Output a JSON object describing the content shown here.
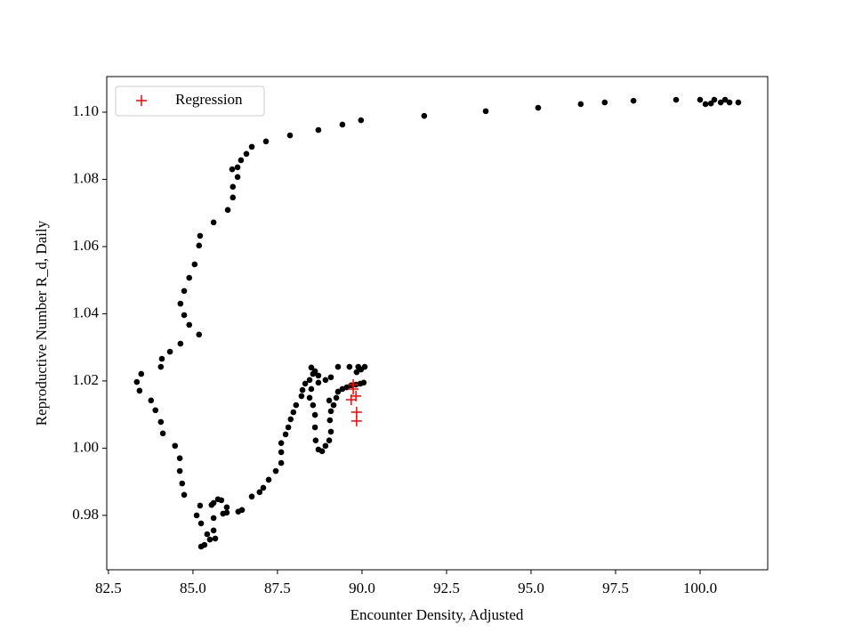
{
  "chart_data": {
    "type": "scatter",
    "xlabel": "Encounter Density, Adjusted",
    "ylabel": "Reproductive Number R_d, Daily",
    "xlim": [
      82.45,
      102.0
    ],
    "ylim": [
      0.9638,
      1.1106
    ],
    "xticks": [
      82.5,
      {
        "value": 85,
        "label": "85.0"
      },
      87.5,
      {
        "value": 90,
        "label": "90.0"
      },
      92.5,
      {
        "value": 95,
        "label": "95.0"
      },
      97.5,
      {
        "value": 100,
        "label": "100.0"
      }
    ],
    "yticks": [
      0.98,
      {
        "value": 1.0,
        "label": "1.00"
      },
      1.02,
      1.04,
      1.06,
      1.08,
      {
        "value": 1.1,
        "label": "1.10"
      }
    ],
    "legend": "upper left",
    "series": [
      {
        "color": "#000000",
        "marker": "dot",
        "x": [
          89.97,
          89.42,
          88.71,
          87.87,
          87.16,
          86.74,
          86.58,
          86.42,
          86.32,
          86.16,
          86.32,
          86.18,
          86.18,
          86.03,
          85.61,
          85.21,
          85.18,
          85.05,
          84.89,
          84.74,
          84.63,
          84.74,
          84.89,
          85.18,
          84.63,
          84.32,
          84.08,
          84.05,
          83.47,
          83.34,
          83.42,
          83.76,
          83.89,
          84.05,
          84.11,
          84.47,
          84.61,
          84.61,
          84.68,
          84.74,
          85.11,
          85.21,
          85.24,
          85.24,
          85.34,
          85.5,
          85.61,
          85.66,
          85.42,
          85.61,
          85.55,
          85.61,
          85.74,
          85.84,
          86.0,
          86.0,
          85.89,
          86.34,
          86.45,
          86.74,
          86.97,
          87.08,
          87.24,
          87.45,
          87.61,
          87.61,
          87.61,
          87.74,
          87.82,
          87.89,
          87.97,
          88.05,
          88.21,
          88.24,
          88.32,
          88.45,
          88.55,
          88.5,
          88.61,
          88.71,
          88.71,
          88.5,
          88.45,
          88.55,
          88.61,
          88.61,
          88.63,
          88.71,
          88.82,
          88.92,
          89.03,
          89.08,
          89.05,
          89.08,
          89.16,
          89.24,
          89.29,
          89.42,
          89.55,
          89.68,
          89.82,
          89.95,
          90.05,
          89.08,
          88.92,
          89.03,
          89.29,
          89.63,
          89.89,
          89.97,
          90.08,
          89.84,
          91.84,
          93.66,
          95.21,
          96.47,
          97.18,
          98.03,
          99.29,
          100.0,
          100.16,
          100.32,
          100.42,
          100.61,
          100.74,
          100.87,
          101.13
        ],
        "y": [
          1.0976,
          1.0963,
          1.0947,
          1.0931,
          1.0913,
          1.0897,
          1.0876,
          1.0857,
          1.0836,
          1.083,
          1.0807,
          1.0778,
          1.0746,
          1.0709,
          1.0672,
          1.0632,
          1.0603,
          1.0547,
          1.0507,
          1.0468,
          1.043,
          1.0396,
          1.0367,
          1.0338,
          1.0311,
          1.0287,
          1.0266,
          1.0242,
          1.0221,
          1.0197,
          1.0171,
          1.0142,
          1.0113,
          1.0078,
          1.0044,
          1.0007,
          0.997,
          0.9932,
          0.9895,
          0.9861,
          0.98,
          0.9829,
          0.9776,
          0.9707,
          0.9712,
          0.9728,
          0.9755,
          0.9731,
          0.9744,
          0.9792,
          0.9831,
          0.9837,
          0.9848,
          0.9845,
          0.9824,
          0.9808,
          0.9805,
          0.9811,
          0.9816,
          0.9856,
          0.9869,
          0.9882,
          0.9906,
          0.9932,
          0.9956,
          0.9988,
          1.0015,
          1.0041,
          1.0062,
          1.0086,
          1.0107,
          1.0128,
          1.0155,
          1.0173,
          1.0192,
          1.0203,
          1.0221,
          1.024,
          1.0229,
          1.0216,
          1.0195,
          1.0176,
          1.015,
          1.0128,
          1.0099,
          1.0062,
          1.0023,
          0.9996,
          0.9991,
          1.0007,
          1.0023,
          1.0049,
          1.0083,
          1.011,
          1.0128,
          1.015,
          1.0168,
          1.0176,
          1.0181,
          1.0187,
          1.0189,
          1.0192,
          1.0195,
          1.0211,
          1.0203,
          1.0142,
          1.0242,
          1.0242,
          1.0242,
          1.0234,
          1.0242,
          1.0226,
          1.0989,
          1.1003,
          1.1013,
          1.1024,
          1.1029,
          1.1034,
          1.1037,
          1.1037,
          1.1024,
          1.1026,
          1.1037,
          1.1029,
          1.1037,
          1.1029,
          1.1029
        ]
      },
      {
        "name": "Regression",
        "color": "#ff0000",
        "marker": "plus",
        "x": [
          89.74,
          89.82,
          89.68,
          89.84,
          89.84,
          89.74
        ],
        "y": [
          1.0176,
          1.0155,
          1.0144,
          1.0107,
          1.0081,
          1.0189
        ]
      }
    ]
  }
}
